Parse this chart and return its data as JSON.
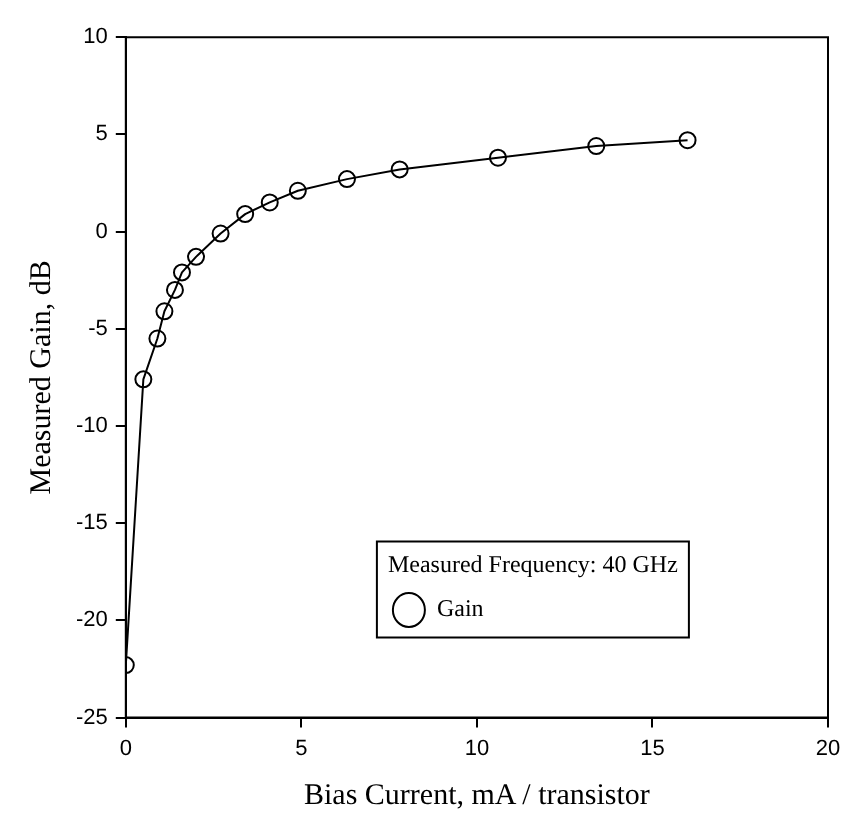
{
  "chart_data": {
    "type": "line",
    "xlabel": "Bias Current, mA / transistor",
    "ylabel": "Measured Gain, dB",
    "legend_title": "Measured Frequency: 40 GHz",
    "legend": "bottom",
    "marker": "circle",
    "line_style": "solid",
    "grid": false,
    "x": [
      0,
      0.5,
      0.9,
      1.1,
      1.4,
      1.6,
      2.0,
      2.7,
      3.4,
      4.1,
      4.9,
      6.3,
      7.8,
      10.6,
      13.4,
      16.0
    ],
    "series": [
      {
        "name": "Gain",
        "color": "#000000",
        "values": [
          -22.3,
          -7.6,
          -5.5,
          -4.1,
          -3.0,
          -2.1,
          -1.3,
          -0.1,
          0.9,
          1.5,
          2.1,
          2.7,
          3.2,
          3.8,
          4.4,
          4.7
        ]
      }
    ],
    "xlim": [
      0,
      20
    ],
    "xticks": [
      0,
      5,
      10,
      15,
      20
    ],
    "ylim": [
      -25,
      10
    ],
    "yticks": [
      -25,
      -20,
      -15,
      -10,
      -5,
      0,
      5,
      10
    ]
  }
}
